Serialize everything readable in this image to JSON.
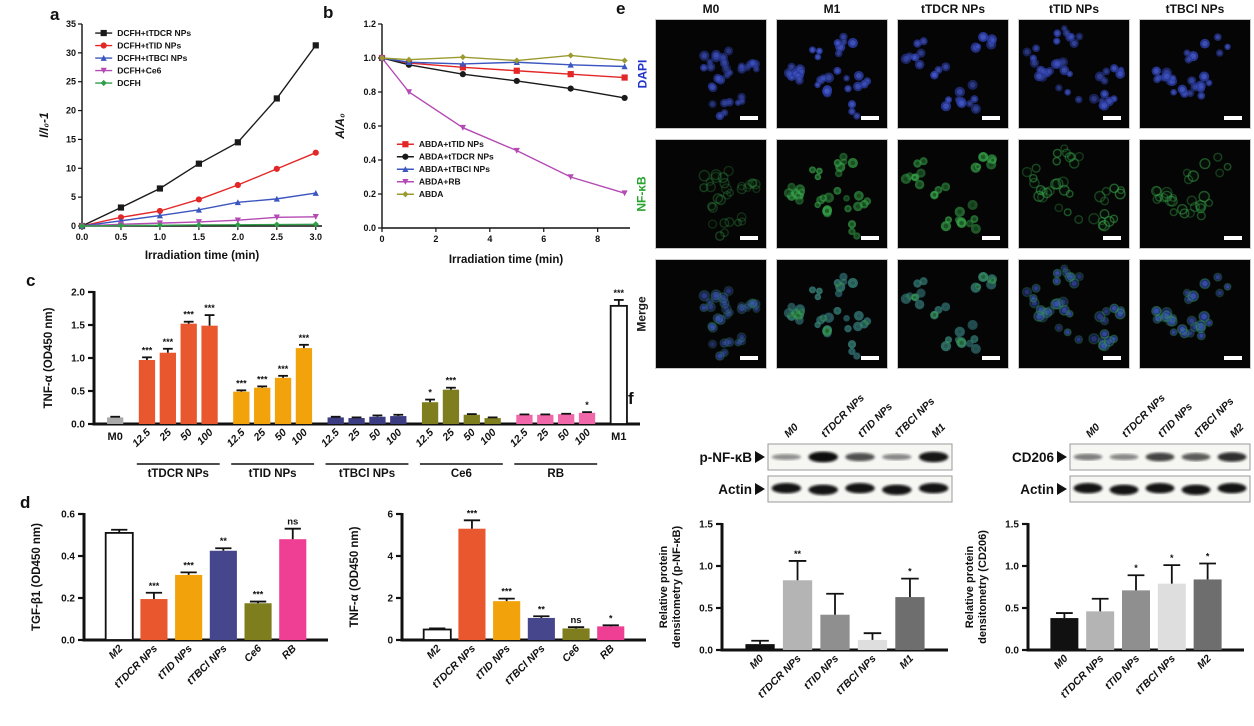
{
  "panels": {
    "a": "a",
    "b": "b",
    "c": "c",
    "d": "d",
    "e": "e",
    "f": "f"
  },
  "chart_data": [
    {
      "id": "panel-a",
      "type": "line",
      "xlabel": "Irradiation time (min)",
      "ylabel": "I/I₀-1",
      "xlim": [
        0,
        3.08
      ],
      "ylim": [
        0,
        35
      ],
      "xticks": [
        0,
        0.5,
        1,
        1.5,
        2,
        2.5,
        3
      ],
      "xtick_labels": [
        "0.0",
        "0.5",
        "1.0",
        "1.5",
        "2.0",
        "2.5",
        "3.0"
      ],
      "yticks": [
        0,
        5,
        10,
        15,
        20,
        25,
        30,
        35
      ],
      "ytick_labels": [
        "0",
        "5",
        "10",
        "15",
        "20",
        "25",
        "30",
        "35"
      ],
      "x": [
        0,
        0.5,
        1,
        1.5,
        2,
        2.5,
        3
      ],
      "legend": {
        "fx": 0.055,
        "fy": 0.015
      },
      "series": [
        {
          "name": "DCFH+tTDCR NPs",
          "color": "#1a1a1a",
          "marker": "square",
          "values": [
            0,
            3.2,
            6.5,
            10.8,
            14.5,
            22.1,
            31.3
          ]
        },
        {
          "name": "DCFH+tTID NPs",
          "color": "#e32726",
          "marker": "circle",
          "values": [
            0,
            1.5,
            2.6,
            4.6,
            7.1,
            9.9,
            12.7
          ]
        },
        {
          "name": "DCFH+tTBCl NPs",
          "color": "#3c56c0",
          "marker": "triangle",
          "values": [
            0,
            0.9,
            1.8,
            2.8,
            4.1,
            4.7,
            5.7
          ]
        },
        {
          "name": "DCFH+Ce6",
          "color": "#b44ab4",
          "marker": "triangle-down",
          "values": [
            0,
            0.3,
            0.5,
            0.7,
            1.0,
            1.5,
            1.6
          ]
        },
        {
          "name": "DCFH",
          "color": "#2f9e49",
          "marker": "diamond",
          "values": [
            0,
            0.08,
            0.12,
            0.18,
            0.2,
            0.25,
            0.3
          ]
        }
      ]
    },
    {
      "id": "panel-b",
      "type": "line",
      "xlabel": "Irradiation time (min)",
      "ylabel": "A/A₀",
      "xlim": [
        0,
        9.2
      ],
      "ylim": [
        0,
        1.2
      ],
      "xticks": [
        0,
        2,
        4,
        6,
        8
      ],
      "xtick_labels": [
        "0",
        "2",
        "4",
        "6",
        "8"
      ],
      "yticks": [
        0,
        0.2,
        0.4,
        0.6,
        0.8,
        1.0,
        1.2
      ],
      "ytick_labels": [
        "0.0",
        "0.2",
        "0.4",
        "0.6",
        "0.8",
        "1.0",
        "1.2"
      ],
      "x": [
        0,
        1,
        3,
        5,
        7,
        9
      ],
      "legend": {
        "fx": 0.06,
        "fy": 0.56
      },
      "series": [
        {
          "name": "ABDA+tTID NPs",
          "color": "#e32726",
          "marker": "square",
          "values": [
            1.0,
            0.97,
            0.945,
            0.925,
            0.905,
            0.885
          ]
        },
        {
          "name": "ABDA+tTDCR NPs",
          "color": "#1a1a1a",
          "marker": "circle",
          "values": [
            1.0,
            0.96,
            0.905,
            0.865,
            0.82,
            0.765
          ]
        },
        {
          "name": "ABDA+tTBCl NPs",
          "color": "#3c56c0",
          "marker": "triangle",
          "values": [
            1.0,
            0.975,
            0.965,
            0.975,
            0.96,
            0.95
          ]
        },
        {
          "name": "ABDA+RB",
          "color": "#b44ab4",
          "marker": "triangle-down",
          "values": [
            1.0,
            0.8,
            0.59,
            0.455,
            0.3,
            0.205
          ]
        },
        {
          "name": "ABDA",
          "color": "#9a9a30",
          "marker": "diamond",
          "values": [
            1.0,
            0.99,
            1.005,
            0.985,
            1.015,
            0.985
          ]
        }
      ]
    },
    {
      "id": "panel-c",
      "type": "bar",
      "ylabel_lines": [
        "TNF-α (OD450 nm)"
      ],
      "ylim": [
        0,
        2.0
      ],
      "yticks": [
        0,
        0.5,
        1.0,
        1.5,
        2.0
      ],
      "ytick_labels": [
        "0.0",
        "0.5",
        "1.0",
        "1.5",
        "2.0"
      ],
      "groups": [
        {
          "label": "",
          "bars": [
            {
              "label": "M0",
              "value": 0.1,
              "err": 0.01,
              "sig": "",
              "color": "#a9a9a9",
              "rot": false
            }
          ]
        },
        {
          "label": "tTDCR NPs",
          "bars": [
            {
              "label": "12.5",
              "value": 0.97,
              "err": 0.04,
              "sig": "***",
              "color": "#e8572e",
              "rot": true
            },
            {
              "label": "25",
              "value": 1.08,
              "err": 0.06,
              "sig": "***",
              "color": "#e8572e",
              "rot": true
            },
            {
              "label": "50",
              "value": 1.52,
              "err": 0.03,
              "sig": "***",
              "color": "#e8572e",
              "rot": true
            },
            {
              "label": "100",
              "value": 1.49,
              "err": 0.16,
              "sig": "***",
              "color": "#e8572e",
              "rot": true
            }
          ]
        },
        {
          "label": "tTID NPs",
          "bars": [
            {
              "label": "12.5",
              "value": 0.49,
              "err": 0.02,
              "sig": "***",
              "color": "#f2a20a",
              "rot": true
            },
            {
              "label": "25",
              "value": 0.55,
              "err": 0.02,
              "sig": "***",
              "color": "#f2a20a",
              "rot": true
            },
            {
              "label": "50",
              "value": 0.7,
              "err": 0.03,
              "sig": "***",
              "color": "#f2a20a",
              "rot": true
            },
            {
              "label": "100",
              "value": 1.15,
              "err": 0.05,
              "sig": "***",
              "color": "#f2a20a",
              "rot": true
            }
          ]
        },
        {
          "label": "tTBCl NPs",
          "bars": [
            {
              "label": "12.5",
              "value": 0.1,
              "err": 0.01,
              "sig": "",
              "color": "#3c3c82",
              "rot": true
            },
            {
              "label": "25",
              "value": 0.09,
              "err": 0.01,
              "sig": "",
              "color": "#3c3c82",
              "rot": true
            },
            {
              "label": "50",
              "value": 0.11,
              "err": 0.02,
              "sig": "",
              "color": "#3c3c82",
              "rot": true
            },
            {
              "label": "100",
              "value": 0.12,
              "err": 0.02,
              "sig": "",
              "color": "#3c3c82",
              "rot": true
            }
          ]
        },
        {
          "label": "Ce6",
          "bars": [
            {
              "label": "12.5",
              "value": 0.33,
              "err": 0.04,
              "sig": "*",
              "color": "#7e7e1e",
              "rot": true
            },
            {
              "label": "25",
              "value": 0.52,
              "err": 0.03,
              "sig": "***",
              "color": "#7e7e1e",
              "rot": true
            },
            {
              "label": "50",
              "value": 0.14,
              "err": 0.01,
              "sig": "",
              "color": "#7e7e1e",
              "rot": true
            },
            {
              "label": "100",
              "value": 0.09,
              "err": 0.01,
              "sig": "",
              "color": "#7e7e1e",
              "rot": true
            }
          ]
        },
        {
          "label": "RB",
          "bars": [
            {
              "label": "12.5",
              "value": 0.14,
              "err": 0.005,
              "sig": "",
              "color": "#f068aa",
              "rot": true
            },
            {
              "label": "25",
              "value": 0.14,
              "err": 0.005,
              "sig": "",
              "color": "#f068aa",
              "rot": true
            },
            {
              "label": "50",
              "value": 0.15,
              "err": 0.005,
              "sig": "",
              "color": "#f068aa",
              "rot": true
            },
            {
              "label": "100",
              "value": 0.17,
              "err": 0.01,
              "sig": "*",
              "color": "#f068aa",
              "rot": true
            }
          ]
        },
        {
          "label": "",
          "bars": [
            {
              "label": "M1",
              "value": 1.79,
              "err": 0.09,
              "sig": "***",
              "color": "#ffffff",
              "stroke": "#111111",
              "rot": false
            }
          ]
        }
      ]
    },
    {
      "id": "panel-d1",
      "type": "bar",
      "ylabel_lines": [
        "TGF-β1 (OD450 nm)"
      ],
      "ylim": [
        0,
        0.6
      ],
      "yticks": [
        0,
        0.2,
        0.4,
        0.6
      ],
      "ytick_labels": [
        "0.0",
        "0.2",
        "0.4",
        "0.6"
      ],
      "groups": [
        {
          "label": "",
          "bars": [
            {
              "label": "M2",
              "value": 0.51,
              "err": 0.015,
              "sig": "",
              "color": "#ffffff",
              "stroke": "#111111",
              "rot": true
            },
            {
              "label": "tTDCR NPs",
              "value": 0.195,
              "err": 0.03,
              "sig": "***",
              "color": "#e8572e",
              "rot": true
            },
            {
              "label": "tTID NPs",
              "value": 0.31,
              "err": 0.012,
              "sig": "***",
              "color": "#f2a20a",
              "rot": true
            },
            {
              "label": "tTBCl NPs",
              "value": 0.425,
              "err": 0.012,
              "sig": "**",
              "color": "#46468c",
              "rot": true
            },
            {
              "label": "Ce6",
              "value": 0.175,
              "err": 0.008,
              "sig": "***",
              "color": "#7e7e1e",
              "rot": true
            },
            {
              "label": "RB",
              "value": 0.48,
              "err": 0.05,
              "sig": "ns",
              "color": "#ee3f94",
              "rot": true
            }
          ]
        }
      ]
    },
    {
      "id": "panel-d2",
      "type": "bar",
      "ylabel_lines": [
        "TNF-α (OD450 nm)"
      ],
      "ylim": [
        0,
        6
      ],
      "yticks": [
        0,
        2,
        4,
        6
      ],
      "ytick_labels": [
        "0",
        "2",
        "4",
        "6"
      ],
      "groups": [
        {
          "label": "",
          "bars": [
            {
              "label": "M2",
              "value": 0.5,
              "err": 0.05,
              "sig": "",
              "color": "#ffffff",
              "stroke": "#111111",
              "rot": true
            },
            {
              "label": "tTDCR NPs",
              "value": 5.3,
              "err": 0.4,
              "sig": "***",
              "color": "#e8572e",
              "rot": true
            },
            {
              "label": "tTID NPs",
              "value": 1.85,
              "err": 0.12,
              "sig": "***",
              "color": "#f2a20a",
              "rot": true
            },
            {
              "label": "tTBCl NPs",
              "value": 1.05,
              "err": 0.08,
              "sig": "**",
              "color": "#46468c",
              "rot": true
            },
            {
              "label": "Ce6",
              "value": 0.55,
              "err": 0.06,
              "sig": "ns",
              "color": "#7e7e1e",
              "rot": true
            },
            {
              "label": "RB",
              "value": 0.65,
              "err": 0.05,
              "sig": "*",
              "color": "#ee3f94",
              "rot": true
            }
          ]
        }
      ]
    },
    {
      "id": "panel-f1",
      "type": "bar",
      "ylabel_lines": [
        "Relative protein",
        "densitometry (p-NF-κB)"
      ],
      "ylim": [
        0,
        1.5
      ],
      "yticks": [
        0,
        0.5,
        1.0,
        1.5
      ],
      "ytick_labels": [
        "0.0",
        "0.5",
        "1.0",
        "1.5"
      ],
      "groups": [
        {
          "label": "",
          "bars": [
            {
              "label": "M0",
              "value": 0.07,
              "err": 0.04,
              "sig": "",
              "color": "#111111",
              "rot": true
            },
            {
              "label": "tTDCR NPs",
              "value": 0.83,
              "err": 0.23,
              "sig": "**",
              "color": "#b4b4b4",
              "rot": true
            },
            {
              "label": "tTID NPs",
              "value": 0.42,
              "err": 0.25,
              "sig": "",
              "color": "#8f8f8f",
              "rot": true
            },
            {
              "label": "tTBCl NPs",
              "value": 0.12,
              "err": 0.08,
              "sig": "",
              "color": "#dedede",
              "rot": true
            },
            {
              "label": "M1",
              "value": 0.63,
              "err": 0.22,
              "sig": "*",
              "color": "#6e6e6e",
              "rot": true
            }
          ]
        }
      ]
    },
    {
      "id": "panel-f2",
      "type": "bar",
      "ylabel_lines": [
        "Relative protein",
        "densitometry (CD206)"
      ],
      "ylim": [
        0,
        1.5
      ],
      "yticks": [
        0,
        0.5,
        1.0,
        1.5
      ],
      "ytick_labels": [
        "0.0",
        "0.5",
        "1.0",
        "1.5"
      ],
      "groups": [
        {
          "label": "",
          "bars": [
            {
              "label": "M0",
              "value": 0.38,
              "err": 0.06,
              "sig": "",
              "color": "#111111",
              "rot": true
            },
            {
              "label": "tTDCR NPs",
              "value": 0.46,
              "err": 0.15,
              "sig": "",
              "color": "#b4b4b4",
              "rot": true
            },
            {
              "label": "tTID NPs",
              "value": 0.71,
              "err": 0.18,
              "sig": "*",
              "color": "#8f8f8f",
              "rot": true
            },
            {
              "label": "tTBCl NPs",
              "value": 0.79,
              "err": 0.22,
              "sig": "*",
              "color": "#dedede",
              "rot": true
            },
            {
              "label": "M2",
              "value": 0.84,
              "err": 0.19,
              "sig": "*",
              "color": "#6e6e6e",
              "rot": true
            }
          ]
        }
      ]
    }
  ],
  "panel_e": {
    "columns": [
      "M0",
      "M1",
      "tTDCR NPs",
      "tTID NPs",
      "tTBCl NPs"
    ],
    "rows": [
      {
        "label": "DAPI",
        "color": "#2233cc"
      },
      {
        "label": "NF-κB",
        "color": "#28a32e"
      },
      {
        "label": "Merge",
        "color": "#1a1a1a"
      }
    ],
    "dapi_color": "#2b3ca0",
    "nfkb_color": "#35a047",
    "scale_bar_color": "#ffffff",
    "dapi_intensity": [
      0.75,
      0.95,
      0.95,
      0.85,
      0.9
    ],
    "nfkb": [
      {
        "style": "ring",
        "intensity": 0.38
      },
      {
        "style": "fill",
        "intensity": 0.92
      },
      {
        "style": "fill",
        "intensity": 1.0
      },
      {
        "style": "ring",
        "intensity": 0.6
      },
      {
        "style": "ring",
        "intensity": 0.55
      }
    ]
  },
  "panel_f": {
    "arrow": "▶",
    "blot1": {
      "target": "p-NF-κB",
      "loading": "Actin",
      "lanes": [
        "M0",
        "tTDCR NPs",
        "tTID NPs",
        "tTBCl NPs",
        "M1"
      ],
      "target_bands": [
        0.25,
        1.0,
        0.62,
        0.3,
        0.95
      ],
      "loading_bands": [
        0.95,
        1,
        0.98,
        1,
        0.97
      ]
    },
    "blot2": {
      "target": "CD206",
      "loading": "Actin",
      "lanes": [
        "M0",
        "tTDCR NPs",
        "tTID NPs",
        "tTBCl NPs",
        "M2"
      ],
      "target_bands": [
        0.35,
        0.3,
        0.68,
        0.55,
        0.8
      ],
      "loading_bands": [
        1,
        0.97,
        1,
        0.98,
        0.96
      ]
    }
  }
}
